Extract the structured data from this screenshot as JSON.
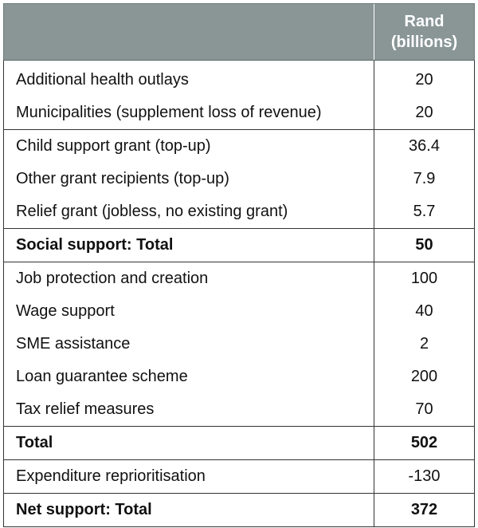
{
  "table": {
    "header": {
      "label": "",
      "value_line1": "Rand",
      "value_line2": "(billions)"
    },
    "rows": [
      {
        "label": "Additional health outlays",
        "value": "20"
      },
      {
        "label": "Municipalities (supplement loss of revenue)",
        "value": "20"
      },
      {
        "label": "Child support grant (top-up)",
        "value": "36.4"
      },
      {
        "label": "Other grant recipients (top-up)",
        "value": "7.9"
      },
      {
        "label": "Relief grant (jobless, no existing grant)",
        "value": "5.7"
      },
      {
        "label": "Social support: Total",
        "value": "50"
      },
      {
        "label": "Job protection and creation",
        "value": "100"
      },
      {
        "label": "Wage support",
        "value": "40"
      },
      {
        "label": "SME assistance",
        "value": "2"
      },
      {
        "label": "Loan guarantee scheme",
        "value": "200"
      },
      {
        "label": "Tax relief measures",
        "value": "70"
      },
      {
        "label": "Total",
        "value": "502"
      },
      {
        "label": "Expenditure reprioritisation",
        "value": "-130"
      },
      {
        "label": "Net support: Total",
        "value": "372"
      }
    ]
  },
  "colors": {
    "header_background": "#8a9696",
    "header_text": "#ffffff",
    "border": "#333333"
  }
}
